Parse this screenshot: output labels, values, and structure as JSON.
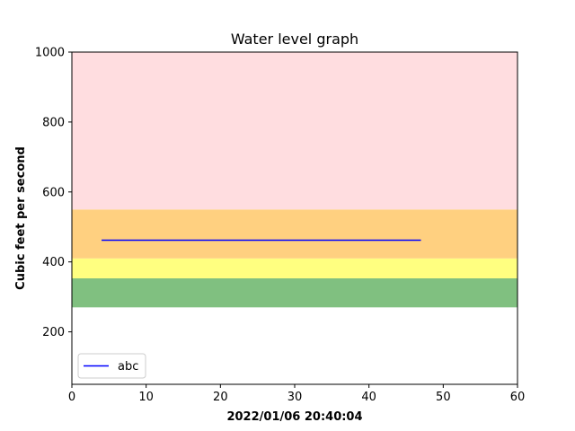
{
  "chart_data": {
    "type": "line",
    "title": "Water level graph",
    "xlabel": "2022/01/06 20:40:04",
    "ylabel": "Cubic feet per second",
    "xlim": [
      0,
      60
    ],
    "ylim": [
      50,
      1000
    ],
    "xticks": [
      0,
      10,
      20,
      30,
      40,
      50,
      60
    ],
    "yticks": [
      200,
      400,
      600,
      800,
      1000
    ],
    "grid": false,
    "legend_position": "lower-left",
    "bands": [
      {
        "from": 270,
        "to": 353,
        "color": "#80c080"
      },
      {
        "from": 353,
        "to": 410,
        "color": "#ffff80"
      },
      {
        "from": 410,
        "to": 550,
        "color": "#ffd080"
      },
      {
        "from": 550,
        "to": 1000,
        "color": "#ffdde0"
      }
    ],
    "series": [
      {
        "name": "abc",
        "color": "#0000ff",
        "x": [
          4,
          47
        ],
        "y": [
          462,
          462
        ]
      }
    ]
  }
}
